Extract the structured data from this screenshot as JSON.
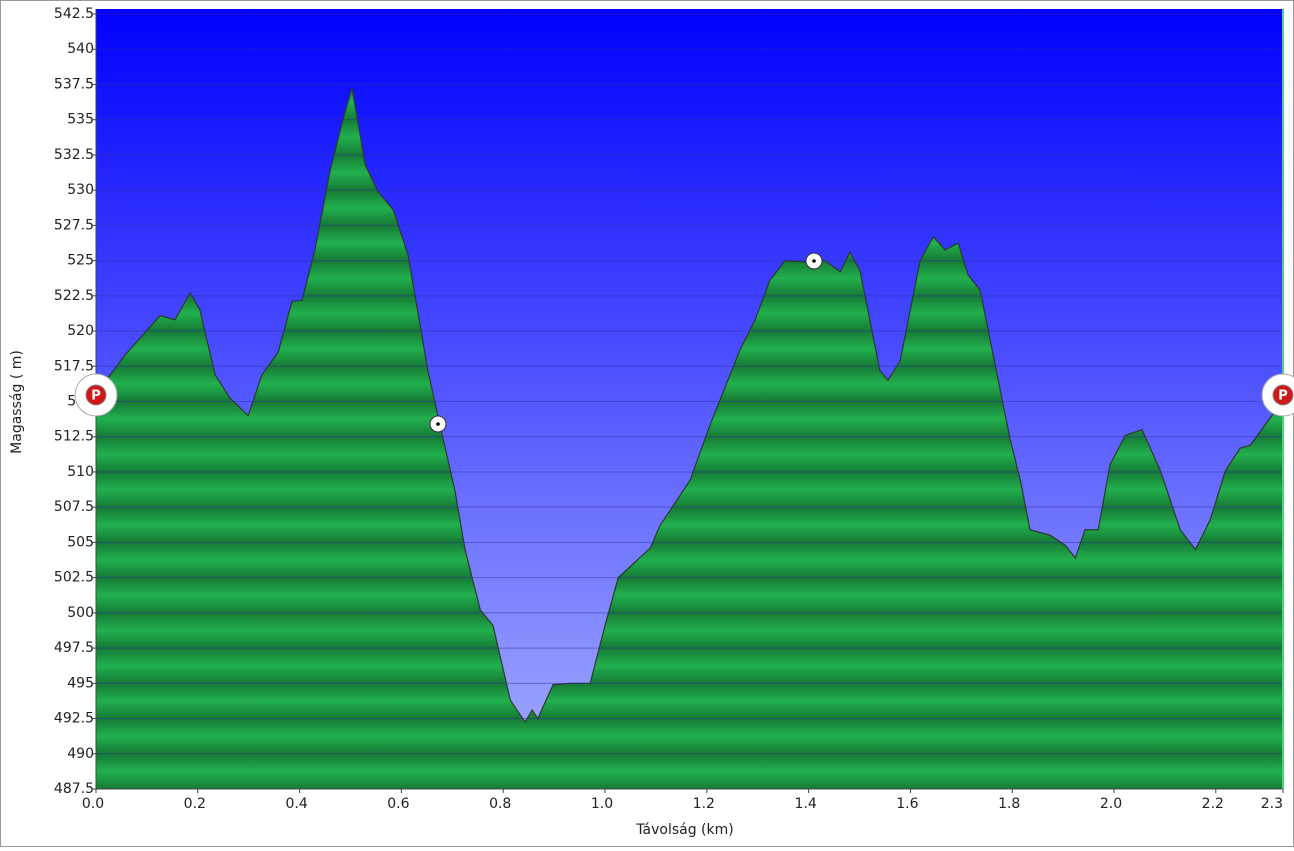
{
  "chart_data": {
    "type": "area",
    "x_label": "Távolság   (km)",
    "y_label": "Magasság ( m)",
    "color": "#1fa84a",
    "grid": true,
    "xlim": [
      0,
      2.332
    ],
    "xticks": [
      {
        "value": 0,
        "label": "0.0"
      },
      0.2,
      0.4,
      0.6,
      0.8,
      {
        "value": 1,
        "label": "1.0"
      },
      1.2,
      1.4,
      1.6,
      1.8,
      {
        "value": 2,
        "label": "2.0"
      },
      2.2,
      {
        "value": 2.332,
        "label": "2.3"
      }
    ],
    "ylim": [
      487.5,
      542.5
    ],
    "yticks": [
      487.5,
      490,
      492.5,
      495,
      497.5,
      500,
      502.5,
      505,
      507.5,
      510,
      512.5,
      515,
      517.5,
      520,
      522.5,
      525,
      527.5,
      530,
      532.5,
      535,
      537.5,
      540,
      542.5
    ],
    "x": [
      0,
      0.028,
      0.057,
      0.126,
      0.155,
      0.185,
      0.204,
      0.234,
      0.263,
      0.299,
      0.326,
      0.358,
      0.385,
      0.405,
      0.43,
      0.46,
      0.485,
      0.503,
      0.529,
      0.554,
      0.584,
      0.613,
      0.652,
      0.676,
      0.705,
      0.725,
      0.755,
      0.78,
      0.814,
      0.843,
      0.857,
      0.868,
      0.898,
      0.931,
      0.971,
      1.0,
      1.026,
      1.089,
      1.108,
      1.167,
      1.206,
      1.265,
      1.295,
      1.324,
      1.354,
      1.393,
      1.432,
      1.462,
      1.481,
      1.501,
      1.54,
      1.556,
      1.58,
      1.619,
      1.645,
      1.668,
      1.694,
      1.713,
      1.737,
      1.796,
      1.816,
      1.835,
      1.875,
      1.904,
      1.924,
      1.943,
      1.969,
      1.992,
      2.022,
      2.055,
      2.091,
      2.13,
      2.16,
      2.189,
      2.219,
      2.248,
      2.268,
      2.332
    ],
    "values": [
      515.5,
      516.9,
      518.3,
      521.1,
      520.8,
      522.7,
      521.5,
      516.9,
      515.25,
      514.0,
      516.9,
      518.5,
      522.1,
      522.2,
      525.75,
      531.4,
      535.0,
      537.25,
      531.8,
      529.9,
      528.6,
      525.4,
      517.2,
      513.3,
      508.7,
      504.5,
      500.2,
      499.1,
      493.8,
      492.25,
      493.1,
      492.5,
      494.9,
      495.0,
      495.0,
      499.1,
      502.5,
      504.6,
      506.2,
      509.4,
      513.3,
      518.65,
      520.8,
      523.6,
      525.0,
      524.9,
      525.0,
      524.2,
      525.6,
      524.3,
      517.2,
      516.5,
      517.9,
      525.0,
      526.7,
      525.75,
      526.25,
      524.0,
      522.9,
      512.3,
      509.4,
      505.9,
      505.5,
      504.8,
      503.9,
      505.9,
      505.9,
      510.5,
      512.6,
      513.0,
      510.1,
      505.9,
      504.5,
      506.6,
      510.1,
      511.7,
      511.9,
      515.1
    ]
  }
}
